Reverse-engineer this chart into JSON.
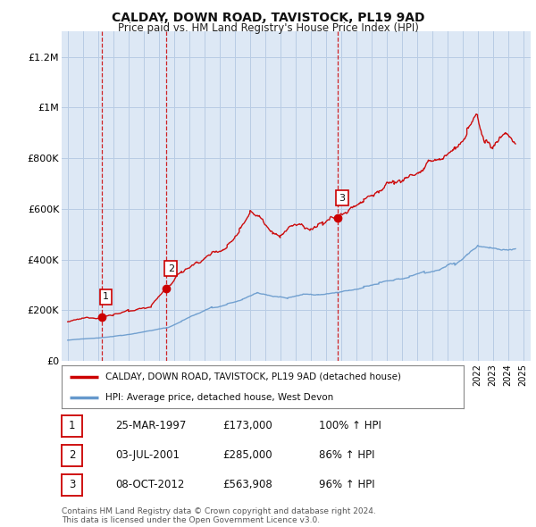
{
  "title": "CALDAY, DOWN ROAD, TAVISTOCK, PL19 9AD",
  "subtitle": "Price paid vs. HM Land Registry's House Price Index (HPI)",
  "ylabel_ticks": [
    "£0",
    "£200K",
    "£400K",
    "£600K",
    "£800K",
    "£1M",
    "£1.2M"
  ],
  "ytick_values": [
    0,
    200000,
    400000,
    600000,
    800000,
    1000000,
    1200000
  ],
  "ylim": [
    0,
    1300000
  ],
  "xlim_start": 1994.6,
  "xlim_end": 2025.5,
  "sales": [
    {
      "date_num": 1997.22,
      "price": 173000,
      "label": "1"
    },
    {
      "date_num": 2001.5,
      "price": 285000,
      "label": "2"
    },
    {
      "date_num": 2012.77,
      "price": 563908,
      "label": "3"
    }
  ],
  "sale_line_color": "#cc0000",
  "hpi_line_color": "#6699cc",
  "sale_vline_color": "#cc0000",
  "legend_sale_label": "CALDAY, DOWN ROAD, TAVISTOCK, PL19 9AD (detached house)",
  "legend_hpi_label": "HPI: Average price, detached house, West Devon",
  "table_rows": [
    {
      "num": "1",
      "date": "25-MAR-1997",
      "price": "£173,000",
      "pct": "100% ↑ HPI"
    },
    {
      "num": "2",
      "date": "03-JUL-2001",
      "price": "£285,000",
      "pct": "86% ↑ HPI"
    },
    {
      "num": "3",
      "date": "08-OCT-2012",
      "price": "£563,908",
      "pct": "96% ↑ HPI"
    }
  ],
  "footnote": "Contains HM Land Registry data © Crown copyright and database right 2024.\nThis data is licensed under the Open Government Licence v3.0.",
  "background_color": "#ffffff",
  "plot_bg_color": "#dde8f5",
  "grid_color": "#b8cce4"
}
